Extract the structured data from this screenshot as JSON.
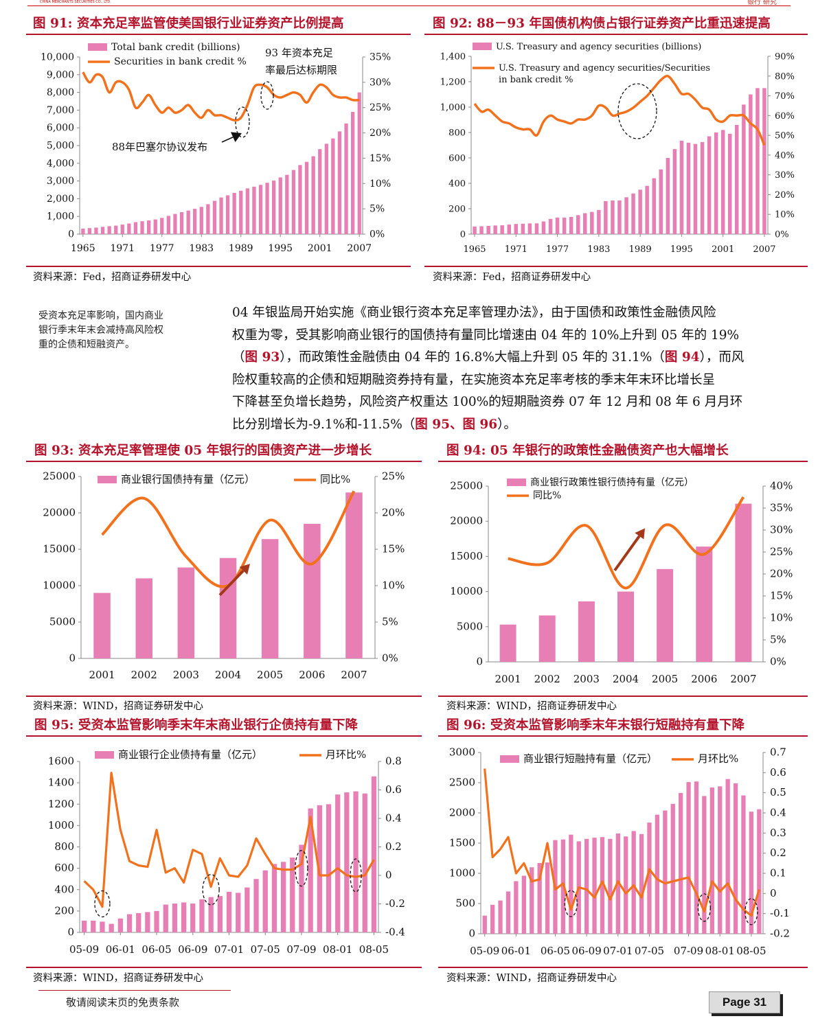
{
  "header": {
    "logo_text": "CHINA MERCHANTS SECURITIES CO., LTD.",
    "report_type": "银行 研究"
  },
  "colors": {
    "accent": "#b5132b",
    "bar": "#e87fb4",
    "line": "#f2711c",
    "arrow": "#a3391a"
  },
  "fig91": {
    "title": "图 91:  资本充足率监管使美国银行业证券资产比例提高",
    "source": "资料来源：Fed，招商证券研发中心",
    "annotations": {
      "note_1993_line1": "93 年资本充足",
      "note_1993_line2": "率最后达标期限",
      "note_1988": "88年巴塞尔协议发布"
    }
  },
  "fig92": {
    "title": "图 92:  88－93 年国债机构债占银行证券资产比重迅速提高",
    "source": "资料来源：Fed，招商证券研发中心"
  },
  "fig93": {
    "title": "图 93:  资本充足率管理使 05 年银行的国债资产进一步增长",
    "source": "资料来源：WIND，招商证券研发中心"
  },
  "fig94": {
    "title": "图 94:  05 年银行的政策性金融债资产也大幅增长",
    "source": "资料来源：WIND，招商证券研发中心"
  },
  "fig95": {
    "title": "图 95:  受资本监管影响季末年末商业银行企债持有量下降",
    "source": "资料来源：WIND，招商证券研发中心"
  },
  "fig96": {
    "title": "图 96:  受资本监管影响季末年末银行短融持有量下降",
    "source": "资料来源：WIND，招商证券研发中心"
  },
  "sidenote": [
    "受资本充足率影响，国内商业",
    "银行季末年末会减持高风险权",
    "重的企债和短融资产。"
  ],
  "paragraph": {
    "l1": "04 年银监局开始实施《商业银行资本充足率管理办法》，由于国债和政策性金融债风险",
    "l2": "权重为零，受其影响商业银行的国债持有量同比增速由 04 年的 10%上升到 05 年的 19%",
    "l3a": "（",
    "l3ref": "图 93",
    "l3b": "），而政策性金融债由 04 年的 16.8%大幅上升到 05 年的 31.1%（",
    "l3ref2": "图 94",
    "l3c": "），而风",
    "l4": "险权重较高的企债和短期融资券持有量，在实施资本充足率考核的季末年末环比增长呈",
    "l5": "下降甚至负增长趋势，风险资产权重达 100%的短期融资券 07 年 12 月和 08 年 6 月月环",
    "l6a": "比分别增长为-9.1%和-11.5%（",
    "l6ref": "图 95、图 96",
    "l6b": "）。"
  },
  "footer": {
    "disclaimer": "敬请阅读末页的免责条款",
    "page": "Page 31"
  },
  "chart_data": [
    {
      "id": "fig91",
      "type": "bar+line",
      "title": "资本充足率监管使美国银行业证券资产比例提高",
      "x": [
        1965,
        1966,
        1967,
        1968,
        1969,
        1970,
        1971,
        1972,
        1973,
        1974,
        1975,
        1976,
        1977,
        1978,
        1979,
        1980,
        1981,
        1982,
        1983,
        1984,
        1985,
        1986,
        1987,
        1988,
        1989,
        1990,
        1991,
        1992,
        1993,
        1994,
        1995,
        1996,
        1997,
        1998,
        1999,
        2000,
        2001,
        2002,
        2003,
        2004,
        2005,
        2006,
        2007
      ],
      "xticks": [
        "1965",
        "1971",
        "1977",
        "1983",
        "1989",
        "1995",
        "2001",
        "2007"
      ],
      "series": [
        {
          "name": "Total bank credit (billions)",
          "axis": "left",
          "kind": "bar",
          "values": [
            310,
            340,
            370,
            410,
            450,
            480,
            540,
            600,
            680,
            730,
            770,
            830,
            920,
            1030,
            1140,
            1240,
            1330,
            1430,
            1540,
            1690,
            1880,
            2070,
            2190,
            2330,
            2450,
            2580,
            2680,
            2780,
            2900,
            3020,
            3200,
            3350,
            3620,
            3900,
            4080,
            4400,
            4800,
            5100,
            5400,
            5800,
            6250,
            6900,
            8000
          ]
        },
        {
          "name": "Securities in bank credit %",
          "axis": "right",
          "kind": "line",
          "values": [
            32,
            30,
            31.5,
            31,
            28,
            30,
            30,
            28.5,
            25,
            26,
            27.5,
            25.5,
            24,
            25,
            24,
            24.5,
            25.5,
            24,
            23,
            24.5,
            23.5,
            23.5,
            23,
            22.5,
            23,
            25.5,
            29,
            29.5,
            29,
            27.5,
            27,
            27.5,
            28,
            27.5,
            26,
            28,
            29.5,
            29,
            27.5,
            27,
            27,
            26.5,
            26.5
          ]
        }
      ],
      "ylim": [
        0,
        10000
      ],
      "yticks": [
        "0",
        "1,000",
        "2,000",
        "3,000",
        "4,000",
        "5,000",
        "6,000",
        "7,000",
        "8,000",
        "9,000",
        "10,000"
      ],
      "y2lim": [
        0,
        35
      ],
      "y2ticks": [
        "0%",
        "5%",
        "10%",
        "15%",
        "20%",
        "25%",
        "30%",
        "35%"
      ],
      "legend": "top-left"
    },
    {
      "id": "fig92",
      "type": "bar+line",
      "title": "88－93 年国债机构债占银行证券资产比重迅速提高",
      "x": [
        1965,
        1966,
        1967,
        1968,
        1969,
        1970,
        1971,
        1972,
        1973,
        1974,
        1975,
        1976,
        1977,
        1978,
        1979,
        1980,
        1981,
        1982,
        1983,
        1984,
        1985,
        1986,
        1987,
        1988,
        1989,
        1990,
        1991,
        1992,
        1993,
        1994,
        1995,
        1996,
        1997,
        1998,
        1999,
        2000,
        2001,
        2002,
        2003,
        2004,
        2005,
        2006,
        2007
      ],
      "xticks": [
        "1965",
        "1971",
        "1977",
        "1983",
        "1989",
        "1995",
        "2001",
        "2007"
      ],
      "series": [
        {
          "name": "U.S. Treasury and agency securities (billions)",
          "axis": "left",
          "kind": "bar",
          "values": [
            60,
            62,
            65,
            68,
            70,
            75,
            80,
            82,
            85,
            85,
            100,
            120,
            130,
            130,
            135,
            150,
            165,
            175,
            190,
            260,
            265,
            265,
            290,
            320,
            350,
            380,
            440,
            510,
            600,
            670,
            735,
            720,
            710,
            725,
            770,
            800,
            820,
            790,
            860,
            1020,
            1100,
            1150,
            1150
          ]
        },
        {
          "name": "U.S. Treasury and agency securities/Securities in bank credit %",
          "axis": "right",
          "kind": "line",
          "values": [
            66,
            62,
            63,
            60,
            57,
            56,
            54,
            53,
            53,
            50,
            57,
            60,
            58,
            57,
            56,
            58,
            58,
            60,
            65,
            64,
            60,
            61,
            62,
            64,
            67,
            70,
            74,
            78,
            80,
            76,
            71,
            71,
            68,
            64,
            63,
            58,
            57,
            60,
            60,
            60,
            56,
            53,
            45
          ]
        }
      ],
      "ylim": [
        0,
        1400
      ],
      "yticks": [
        "0",
        "200",
        "400",
        "600",
        "800",
        "1,000",
        "1,200",
        "1,400"
      ],
      "y2lim": [
        0,
        90
      ],
      "y2ticks": [
        "0%",
        "10%",
        "20%",
        "30%",
        "40%",
        "50%",
        "60%",
        "70%",
        "80%",
        "90%"
      ],
      "legend": "top-left"
    },
    {
      "id": "fig93",
      "type": "bar+line",
      "title": "资本充足率管理使 05 年银行的国债资产进一步增长",
      "categories": [
        "2001",
        "2002",
        "2003",
        "2004",
        "2005",
        "2006",
        "2007"
      ],
      "series": [
        {
          "name": "商业银行国债持有量（亿元）",
          "axis": "left",
          "kind": "bar",
          "values": [
            9000,
            11000,
            12500,
            13800,
            16400,
            18500,
            22800
          ]
        },
        {
          "name": "同比%",
          "axis": "right",
          "kind": "line",
          "values": [
            17,
            22,
            14,
            10,
            19,
            13,
            23
          ]
        }
      ],
      "ylim": [
        0,
        25000
      ],
      "yticks": [
        "0",
        "5000",
        "10000",
        "15000",
        "20000",
        "25000"
      ],
      "y2lim": [
        0,
        25
      ],
      "y2ticks": [
        "0%",
        "5%",
        "10%",
        "15%",
        "20%",
        "25%"
      ],
      "legend": "top"
    },
    {
      "id": "fig94",
      "type": "bar+line",
      "title": "05 年银行的政策性金融债资产也大幅增长",
      "categories": [
        "2001",
        "2002",
        "2003",
        "2004",
        "2005",
        "2006",
        "2007"
      ],
      "series": [
        {
          "name": "商业银行政策性银行债持有量（亿元）",
          "axis": "left",
          "kind": "bar",
          "values": [
            5300,
            6600,
            8600,
            10000,
            13200,
            16400,
            22500
          ]
        },
        {
          "name": "同比%",
          "axis": "right",
          "kind": "line",
          "values": [
            23.5,
            22.5,
            31,
            16.8,
            31.1,
            24.5,
            37.5
          ]
        }
      ],
      "ylim": [
        0,
        25000
      ],
      "yticks": [
        "0",
        "5000",
        "10000",
        "15000",
        "20000",
        "25000"
      ],
      "y2lim": [
        0,
        40
      ],
      "y2ticks": [
        "0%",
        "5%",
        "10%",
        "15%",
        "20%",
        "25%",
        "30%",
        "35%",
        "40%"
      ],
      "legend": "top-left"
    },
    {
      "id": "fig95",
      "type": "bar+line",
      "title": "受资本监管影响季末年末商业银行企债持有量下降",
      "xticks": [
        "05-09",
        "06-01",
        "06-05",
        "06-09",
        "07-01",
        "07-05",
        "07-09",
        "08-01",
        "08-05"
      ],
      "series": [
        {
          "name": "商业银行企业债持有量（亿元）",
          "axis": "left",
          "kind": "bar",
          "values": [
            110,
            110,
            100,
            80,
            130,
            170,
            180,
            190,
            200,
            260,
            270,
            280,
            270,
            310,
            330,
            340,
            380,
            370,
            420,
            500,
            580,
            640,
            660,
            700,
            820,
            1160,
            1190,
            1200,
            1290,
            1310,
            1320,
            1300,
            1460
          ]
        },
        {
          "name": "月环比%",
          "axis": "right",
          "kind": "line",
          "values": [
            -0.04,
            -0.1,
            -0.22,
            0.72,
            0.32,
            0.1,
            0.07,
            0.06,
            0.32,
            0.02,
            0.05,
            -0.05,
            0.18,
            0.15,
            -0.08,
            0.12,
            0.0,
            -0.01,
            0.07,
            0.26,
            0.15,
            0.05,
            0.04,
            0.04,
            0.08,
            0.41,
            0.0,
            0.0,
            0.05,
            0.0,
            -0.01,
            0.0,
            0.11
          ]
        }
      ],
      "ylim": [
        0,
        1600
      ],
      "yticks": [
        "0",
        "200",
        "400",
        "600",
        "800",
        "1000",
        "1200",
        "1400",
        "1600"
      ],
      "y2lim": [
        -0.4,
        0.8
      ],
      "y2ticks": [
        "-0.4",
        "-0.2",
        "0",
        "0.2",
        "0.4",
        "0.6",
        "0.8"
      ],
      "legend": "top"
    },
    {
      "id": "fig96",
      "type": "bar+line",
      "title": "受资本监管影响季末年末银行短融持有量下降",
      "xticks": [
        "05-09",
        "06-01",
        "06-05",
        "06-09",
        "07-01",
        "07-05",
        "07-09",
        "08-01",
        "08-05"
      ],
      "series": [
        {
          "name": "商业银行短融持有量（亿元）",
          "axis": "left",
          "kind": "bar",
          "values": [
            300,
            480,
            550,
            700,
            870,
            960,
            1100,
            1170,
            1180,
            1550,
            1560,
            1640,
            1530,
            1570,
            1590,
            1600,
            1570,
            1660,
            1610,
            1700,
            1650,
            1840,
            1970,
            2040,
            2150,
            2330,
            2510,
            2520,
            2280,
            2420,
            2440,
            2560,
            2490,
            2290,
            2020,
            2060
          ]
        },
        {
          "name": "月环比%",
          "axis": "right",
          "kind": "line",
          "values": [
            0.62,
            0.18,
            0.22,
            0.28,
            0.1,
            0.15,
            0.06,
            0.07,
            0.25,
            0.02,
            0.05,
            -0.08,
            0.03,
            0.02,
            -0.02,
            0.06,
            -0.03,
            0.06,
            0.0,
            0.04,
            -0.02,
            0.12,
            0.07,
            0.05,
            0.06,
            0.07,
            0.08,
            0.0,
            -0.09,
            0.06,
            0.01,
            0.05,
            -0.03,
            -0.08,
            -0.11,
            0.02
          ]
        }
      ],
      "ylim": [
        0,
        3000
      ],
      "yticks": [
        "0",
        "500",
        "1000",
        "1500",
        "2000",
        "2500",
        "3000"
      ],
      "y2lim": [
        -0.2,
        0.7
      ],
      "y2ticks": [
        "-0.2",
        "-0.1",
        "0",
        "0.1",
        "0.2",
        "0.3",
        "0.4",
        "0.5",
        "0.6",
        "0.7"
      ],
      "legend": "top"
    }
  ]
}
